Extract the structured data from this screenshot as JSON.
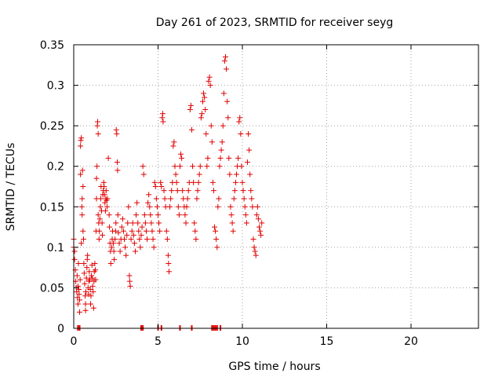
{
  "chart_data": {
    "type": "scatter",
    "title": "Day 261 of 2023, SRMTID for receiver seyg",
    "xlabel": "GPS time / hours",
    "ylabel": "SRMTID / TECUs",
    "xlim": [
      0,
      24
    ],
    "ylim": [
      0,
      0.35
    ],
    "x_ticks": [
      0,
      5,
      10,
      15,
      20
    ],
    "x_tick_labels": [
      "0",
      "5",
      "10",
      "15",
      "20"
    ],
    "y_ticks": [
      0,
      0.05,
      0.1,
      0.15,
      0.2,
      0.25,
      0.3,
      0.35
    ],
    "y_tick_labels": [
      "0",
      "0.05",
      "0.1",
      "0.15",
      "0.2",
      "0.25",
      "0.3",
      "0.35"
    ],
    "grid": true,
    "marker": "plus",
    "color": "#e00000",
    "series": [
      {
        "name": "SRMTID",
        "points": [
          [
            0.0,
            0.11
          ],
          [
            0.0,
            0.1
          ],
          [
            0.05,
            0.085
          ],
          [
            0.05,
            0.095
          ],
          [
            0.1,
            0.072
          ],
          [
            0.12,
            0.058
          ],
          [
            0.15,
            0.05
          ],
          [
            0.18,
            0.045
          ],
          [
            0.2,
            0.065
          ],
          [
            0.22,
            0.038
          ],
          [
            0.25,
            0.03
          ],
          [
            0.25,
            0.052
          ],
          [
            0.28,
            0.08
          ],
          [
            0.3,
            0.048
          ],
          [
            0.32,
            0.042
          ],
          [
            0.35,
            0.035
          ],
          [
            0.35,
            0.02
          ],
          [
            0.38,
            0.06
          ],
          [
            0.4,
            0.19
          ],
          [
            0.4,
            0.225
          ],
          [
            0.42,
            0.232
          ],
          [
            0.45,
            0.235
          ],
          [
            0.45,
            0.105
          ],
          [
            0.48,
            0.15
          ],
          [
            0.5,
            0.16
          ],
          [
            0.5,
            0.14
          ],
          [
            0.52,
            0.195
          ],
          [
            0.55,
            0.175
          ],
          [
            0.55,
            0.12
          ],
          [
            0.58,
            0.11
          ],
          [
            0.6,
            0.08
          ],
          [
            0.62,
            0.068
          ],
          [
            0.65,
            0.055
          ],
          [
            0.68,
            0.04
          ],
          [
            0.7,
            0.03
          ],
          [
            0.7,
            0.022
          ],
          [
            0.72,
            0.045
          ],
          [
            0.75,
            0.062
          ],
          [
            0.78,
            0.075
          ],
          [
            0.8,
            0.085
          ],
          [
            0.82,
            0.09
          ],
          [
            0.85,
            0.05
          ],
          [
            0.88,
            0.042
          ],
          [
            0.9,
            0.058
          ],
          [
            0.92,
            0.07
          ],
          [
            0.95,
            0.06
          ],
          [
            0.98,
            0.048
          ],
          [
            1.0,
            0.03
          ],
          [
            1.02,
            0.04
          ],
          [
            1.05,
            0.065
          ],
          [
            1.08,
            0.078
          ],
          [
            1.1,
            0.062
          ],
          [
            1.12,
            0.052
          ],
          [
            1.15,
            0.045
          ],
          [
            1.18,
            0.025
          ],
          [
            1.2,
            0.058
          ],
          [
            1.22,
            0.07
          ],
          [
            1.25,
            0.08
          ],
          [
            1.28,
            0.072
          ],
          [
            1.3,
            0.06
          ],
          [
            1.32,
            0.12
          ],
          [
            1.35,
            0.16
          ],
          [
            1.35,
            0.185
          ],
          [
            1.38,
            0.2
          ],
          [
            1.4,
            0.25
          ],
          [
            1.42,
            0.255
          ],
          [
            1.45,
            0.24
          ],
          [
            1.45,
            0.14
          ],
          [
            1.48,
            0.13
          ],
          [
            1.5,
            0.11
          ],
          [
            1.52,
            0.12
          ],
          [
            1.55,
            0.135
          ],
          [
            1.58,
            0.15
          ],
          [
            1.6,
            0.16
          ],
          [
            1.62,
            0.175
          ],
          [
            1.65,
            0.145
          ],
          [
            1.68,
            0.13
          ],
          [
            1.7,
            0.115
          ],
          [
            1.72,
            0.165
          ],
          [
            1.75,
            0.17
          ],
          [
            1.78,
            0.18
          ],
          [
            1.8,
            0.175
          ],
          [
            1.82,
            0.165
          ],
          [
            1.85,
            0.155
          ],
          [
            1.88,
            0.145
          ],
          [
            1.9,
            0.16
          ],
          [
            1.92,
            0.17
          ],
          [
            1.95,
            0.158
          ],
          [
            1.98,
            0.15
          ],
          [
            2.0,
            0.16
          ],
          [
            2.05,
            0.21
          ],
          [
            2.1,
            0.14
          ],
          [
            2.12,
            0.125
          ],
          [
            2.15,
            0.105
          ],
          [
            2.18,
            0.095
          ],
          [
            2.2,
            0.08
          ],
          [
            2.25,
            0.1
          ],
          [
            2.28,
            0.11
          ],
          [
            2.3,
            0.12
          ],
          [
            2.35,
            0.105
          ],
          [
            2.38,
            0.095
          ],
          [
            2.4,
            0.085
          ],
          [
            2.45,
            0.11
          ],
          [
            2.48,
            0.12
          ],
          [
            2.5,
            0.13
          ],
          [
            2.52,
            0.245
          ],
          [
            2.55,
            0.24
          ],
          [
            2.58,
            0.205
          ],
          [
            2.6,
            0.195
          ],
          [
            2.62,
            0.14
          ],
          [
            2.65,
            0.118
          ],
          [
            2.7,
            0.105
          ],
          [
            2.75,
            0.095
          ],
          [
            2.8,
            0.11
          ],
          [
            2.85,
            0.125
          ],
          [
            2.9,
            0.135
          ],
          [
            2.95,
            0.12
          ],
          [
            3.0,
            0.11
          ],
          [
            3.05,
            0.1
          ],
          [
            3.1,
            0.09
          ],
          [
            3.15,
            0.115
          ],
          [
            3.2,
            0.13
          ],
          [
            3.25,
            0.15
          ],
          [
            3.3,
            0.065
          ],
          [
            3.32,
            0.058
          ],
          [
            3.35,
            0.052
          ],
          [
            3.4,
            0.11
          ],
          [
            3.45,
            0.12
          ],
          [
            3.5,
            0.13
          ],
          [
            3.55,
            0.115
          ],
          [
            3.6,
            0.105
          ],
          [
            3.65,
            0.095
          ],
          [
            3.7,
            0.14
          ],
          [
            3.75,
            0.155
          ],
          [
            3.8,
            0.13
          ],
          [
            3.85,
            0.12
          ],
          [
            3.9,
            0.11
          ],
          [
            3.95,
            0.1
          ],
          [
            4.0,
            0.115
          ],
          [
            4.05,
            0.125
          ],
          [
            4.1,
            0.2
          ],
          [
            4.15,
            0.19
          ],
          [
            4.2,
            0.14
          ],
          [
            4.25,
            0.13
          ],
          [
            4.3,
            0.12
          ],
          [
            4.35,
            0.11
          ],
          [
            4.4,
            0.155
          ],
          [
            4.45,
            0.165
          ],
          [
            4.5,
            0.15
          ],
          [
            4.55,
            0.14
          ],
          [
            4.6,
            0.13
          ],
          [
            4.65,
            0.12
          ],
          [
            4.7,
            0.11
          ],
          [
            4.75,
            0.1
          ],
          [
            4.8,
            0.18
          ],
          [
            4.85,
            0.175
          ],
          [
            4.9,
            0.16
          ],
          [
            4.95,
            0.15
          ],
          [
            5.0,
            0.14
          ],
          [
            5.05,
            0.13
          ],
          [
            5.1,
            0.12
          ],
          [
            5.15,
            0.18
          ],
          [
            5.2,
            0.175
          ],
          [
            5.25,
            0.26
          ],
          [
            5.28,
            0.265
          ],
          [
            5.3,
            0.255
          ],
          [
            5.35,
            0.17
          ],
          [
            5.4,
            0.16
          ],
          [
            5.45,
            0.15
          ],
          [
            5.5,
            0.12
          ],
          [
            5.55,
            0.11
          ],
          [
            5.6,
            0.09
          ],
          [
            5.62,
            0.08
          ],
          [
            5.65,
            0.07
          ],
          [
            5.7,
            0.15
          ],
          [
            5.75,
            0.16
          ],
          [
            5.8,
            0.17
          ],
          [
            5.85,
            0.18
          ],
          [
            5.9,
            0.225
          ],
          [
            5.95,
            0.23
          ],
          [
            6.0,
            0.2
          ],
          [
            6.05,
            0.19
          ],
          [
            6.1,
            0.18
          ],
          [
            6.15,
            0.17
          ],
          [
            6.2,
            0.15
          ],
          [
            6.25,
            0.14
          ],
          [
            6.3,
            0.2
          ],
          [
            6.35,
            0.215
          ],
          [
            6.4,
            0.21
          ],
          [
            6.45,
            0.17
          ],
          [
            6.5,
            0.16
          ],
          [
            6.55,
            0.15
          ],
          [
            6.6,
            0.14
          ],
          [
            6.65,
            0.13
          ],
          [
            6.7,
            0.15
          ],
          [
            6.75,
            0.16
          ],
          [
            6.8,
            0.17
          ],
          [
            6.85,
            0.18
          ],
          [
            6.9,
            0.27
          ],
          [
            6.95,
            0.275
          ],
          [
            7.0,
            0.245
          ],
          [
            7.05,
            0.2
          ],
          [
            7.1,
            0.18
          ],
          [
            7.15,
            0.13
          ],
          [
            7.2,
            0.12
          ],
          [
            7.25,
            0.11
          ],
          [
            7.3,
            0.16
          ],
          [
            7.35,
            0.17
          ],
          [
            7.4,
            0.18
          ],
          [
            7.45,
            0.19
          ],
          [
            7.5,
            0.2
          ],
          [
            7.55,
            0.26
          ],
          [
            7.6,
            0.265
          ],
          [
            7.65,
            0.28
          ],
          [
            7.7,
            0.29
          ],
          [
            7.75,
            0.285
          ],
          [
            7.8,
            0.27
          ],
          [
            7.85,
            0.24
          ],
          [
            7.9,
            0.2
          ],
          [
            7.95,
            0.21
          ],
          [
            8.0,
            0.305
          ],
          [
            8.05,
            0.31
          ],
          [
            8.1,
            0.3
          ],
          [
            8.15,
            0.25
          ],
          [
            8.2,
            0.23
          ],
          [
            8.25,
            0.18
          ],
          [
            8.3,
            0.17
          ],
          [
            8.35,
            0.125
          ],
          [
            8.4,
            0.12
          ],
          [
            8.45,
            0.11
          ],
          [
            8.5,
            0.1
          ],
          [
            8.55,
            0.15
          ],
          [
            8.6,
            0.16
          ],
          [
            8.65,
            0.2
          ],
          [
            8.7,
            0.21
          ],
          [
            8.75,
            0.22
          ],
          [
            8.8,
            0.23
          ],
          [
            8.85,
            0.25
          ],
          [
            8.9,
            0.29
          ],
          [
            8.95,
            0.33
          ],
          [
            9.0,
            0.335
          ],
          [
            9.05,
            0.32
          ],
          [
            9.1,
            0.28
          ],
          [
            9.15,
            0.26
          ],
          [
            9.2,
            0.21
          ],
          [
            9.25,
            0.19
          ],
          [
            9.3,
            0.15
          ],
          [
            9.35,
            0.14
          ],
          [
            9.4,
            0.13
          ],
          [
            9.45,
            0.12
          ],
          [
            9.5,
            0.16
          ],
          [
            9.55,
            0.17
          ],
          [
            9.6,
            0.18
          ],
          [
            9.65,
            0.19
          ],
          [
            9.7,
            0.2
          ],
          [
            9.75,
            0.21
          ],
          [
            9.8,
            0.255
          ],
          [
            9.85,
            0.26
          ],
          [
            9.9,
            0.24
          ],
          [
            9.95,
            0.2
          ],
          [
            10.0,
            0.18
          ],
          [
            10.05,
            0.17
          ],
          [
            10.1,
            0.16
          ],
          [
            10.15,
            0.15
          ],
          [
            10.2,
            0.14
          ],
          [
            10.25,
            0.13
          ],
          [
            10.3,
            0.205
          ],
          [
            10.35,
            0.24
          ],
          [
            10.4,
            0.22
          ],
          [
            10.45,
            0.19
          ],
          [
            10.5,
            0.17
          ],
          [
            10.55,
            0.16
          ],
          [
            10.6,
            0.15
          ],
          [
            10.65,
            0.11
          ],
          [
            10.7,
            0.1
          ],
          [
            10.75,
            0.095
          ],
          [
            10.8,
            0.09
          ],
          [
            10.85,
            0.14
          ],
          [
            10.9,
            0.15
          ],
          [
            10.95,
            0.135
          ],
          [
            11.0,
            0.125
          ],
          [
            11.05,
            0.12
          ],
          [
            11.1,
            0.115
          ],
          [
            11.15,
            0.13
          ]
        ]
      }
    ],
    "rug_x": [
      0.25,
      0.35,
      4.0,
      4.1,
      5.0,
      5.2,
      6.3,
      7.0,
      8.2,
      8.3,
      8.4,
      8.5,
      8.7
    ]
  }
}
